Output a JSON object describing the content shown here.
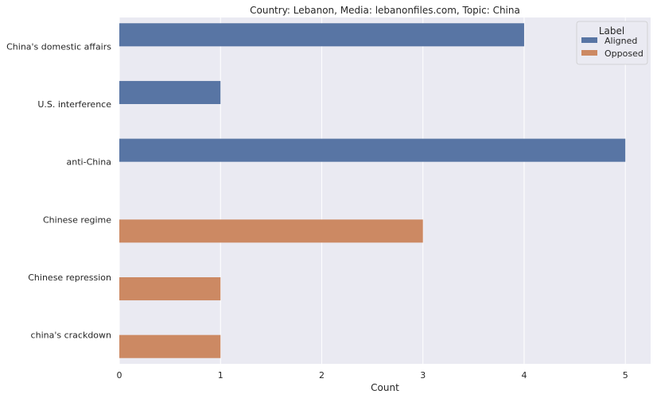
{
  "chart_data": {
    "type": "bar",
    "orientation": "horizontal",
    "title": "Country: Lebanon, Media: lebanonfiles.com, Topic: China",
    "xlabel": "Count",
    "ylabel": "",
    "xlim": [
      0,
      5.25
    ],
    "xticks": [
      "0",
      "1",
      "2",
      "3",
      "4",
      "5"
    ],
    "grid": true,
    "categories": [
      "China's domestic affairs",
      "U.S. interference",
      "anti-China",
      "Chinese regime",
      "Chinese repression",
      "china's crackdown"
    ],
    "series": [
      {
        "name": "Aligned",
        "color": "#5875a4",
        "values": [
          4,
          1,
          5,
          0,
          0,
          0
        ]
      },
      {
        "name": "Opposed",
        "color": "#cc8963",
        "values": [
          0,
          0,
          0,
          3,
          1,
          1
        ]
      }
    ],
    "legend": {
      "title": "Label",
      "placement": "top-right"
    }
  }
}
